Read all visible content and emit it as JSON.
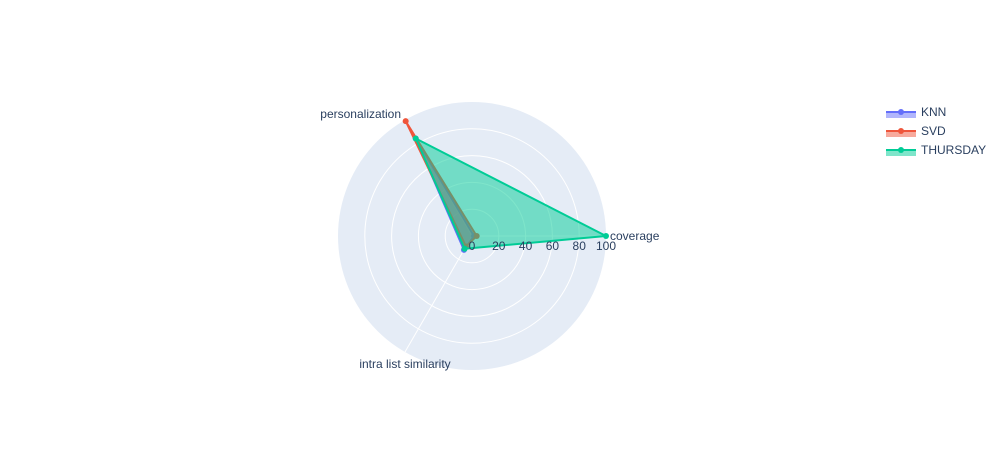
{
  "chart_data": {
    "type": "radar",
    "title": "",
    "theta": [
      "coverage",
      "personalization",
      "intra list similarity"
    ],
    "radial_range": [
      0,
      100
    ],
    "radial_ticks": [
      0,
      20,
      40,
      60,
      80,
      100
    ],
    "grid": true,
    "legend_placement": "top-right",
    "series": [
      {
        "name": "KNN",
        "color": "#636efa",
        "values": [
          1.5,
          84,
          12
        ]
      },
      {
        "name": "SVD",
        "color": "#ef553b",
        "values": [
          3.5,
          99,
          9
        ]
      },
      {
        "name": "THURSDAY",
        "color": "#00cc96",
        "values": [
          100,
          84,
          11
        ]
      }
    ]
  }
}
